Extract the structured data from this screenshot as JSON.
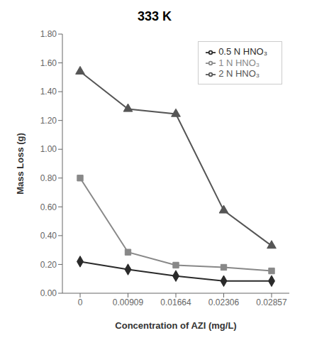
{
  "chart_data": {
    "type": "line",
    "title": "333 K",
    "xlabel": "Concentration of AZI (mg/L)",
    "ylabel": "Mass Loss (g)",
    "categories": [
      "0",
      "0.00909",
      "0.01664",
      "0.02306",
      "0.02857"
    ],
    "series": [
      {
        "name": "0.5 N HNO₃",
        "color": "#2a2a2a",
        "marker": "diamond",
        "values": [
          0.22,
          0.165,
          0.12,
          0.085,
          0.085
        ]
      },
      {
        "name": "1 N HNO₃",
        "color": "#888888",
        "marker": "square",
        "values": [
          0.8,
          0.285,
          0.195,
          0.18,
          0.155
        ]
      },
      {
        "name": "2 N HNO₃",
        "color": "#555555",
        "marker": "triangle",
        "values": [
          1.54,
          1.28,
          1.245,
          0.575,
          0.33
        ]
      }
    ],
    "ylim": [
      0.0,
      1.8
    ],
    "yticks": [
      {
        "value": 0,
        "label": "0.00"
      },
      {
        "value": 0.2,
        "label": "0.20"
      },
      {
        "value": 0.4,
        "label": "0.40"
      },
      {
        "value": 0.6,
        "label": "0.60"
      },
      {
        "value": 0.8,
        "label": "0.80"
      },
      {
        "value": 1.0,
        "label": "1.00"
      },
      {
        "value": 1.2,
        "label": "1.20"
      },
      {
        "value": 1.4,
        "label": "1.40"
      },
      {
        "value": 1.6,
        "label": "1.60"
      },
      {
        "value": 1.8,
        "label": "1.80"
      }
    ],
    "legend": "upper right",
    "grid": false
  }
}
